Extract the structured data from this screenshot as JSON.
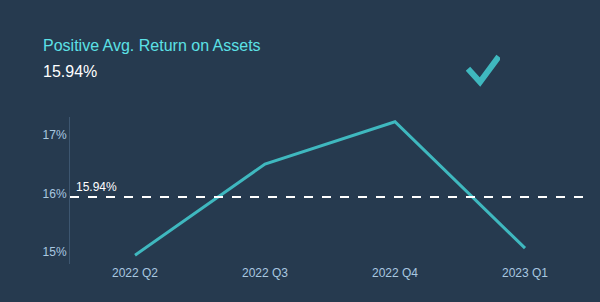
{
  "chart_data": {
    "type": "line",
    "title": "Positive Avg. Return on Assets",
    "subtitle": "15.94%",
    "categories": [
      "2022 Q2",
      "2022 Q3",
      "2022 Q4",
      "2023 Q1"
    ],
    "values": [
      14.95,
      16.5,
      17.22,
      15.07
    ],
    "color": "#3fb8bf",
    "ylim": [
      14.8,
      17.3
    ],
    "yticks": [
      {
        "value": 15,
        "label": "15%"
      },
      {
        "value": 16,
        "label": "16%"
      },
      {
        "value": 17,
        "label": "17%"
      }
    ],
    "grid": false,
    "reference_line": {
      "value": 15.94,
      "label": "15.94%"
    }
  }
}
